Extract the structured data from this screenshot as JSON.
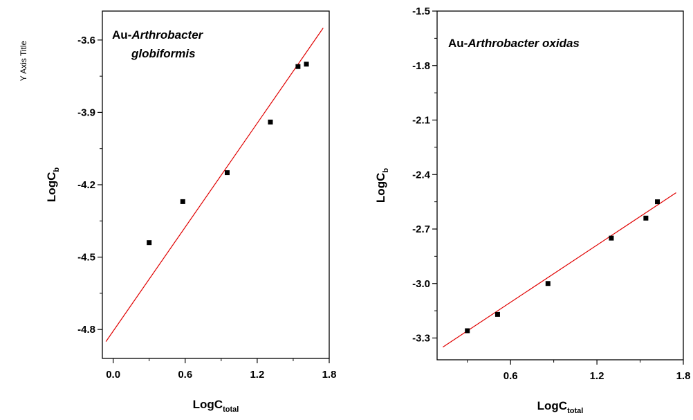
{
  "side_label": "Y Axis Title",
  "chart_data": [
    {
      "type": "scatter",
      "annotation_prefix": "Au-",
      "annotation_italic": "Arthrobacter",
      "annotation_line2": "globiformis",
      "xlabel_main": "LogC",
      "xlabel_sub": "total",
      "ylabel_main": "LogC",
      "ylabel_sub": "b",
      "xlim": [
        -0.09,
        1.8
      ],
      "ylim": [
        -4.92,
        -3.48
      ],
      "xticks": [
        0.0,
        0.6,
        1.2,
        1.8
      ],
      "xtick_labels": [
        "0.0",
        "0.6",
        "1.2",
        "1.8"
      ],
      "yticks": [
        -4.8,
        -4.5,
        -4.2,
        -3.9,
        -3.6
      ],
      "ytick_labels": [
        "-4.8",
        "-4.5",
        "-4.2",
        "-3.9",
        "-3.6"
      ],
      "points": [
        {
          "x": 0.3,
          "y": -4.44
        },
        {
          "x": 0.58,
          "y": -4.27
        },
        {
          "x": 0.95,
          "y": -4.15
        },
        {
          "x": 1.31,
          "y": -3.94
        },
        {
          "x": 1.54,
          "y": -3.71
        },
        {
          "x": 1.61,
          "y": -3.7
        }
      ],
      "fit": {
        "x": [
          -0.06,
          1.75
        ],
        "y": [
          -4.85,
          -3.55
        ],
        "color": "#e00000"
      },
      "marker_color": "#000000"
    },
    {
      "type": "scatter",
      "annotation_prefix": "Au-",
      "annotation_italic": "Arthrobacter",
      "annotation_suffix": " oxidas",
      "xlabel_main": "LogC",
      "xlabel_sub": "total",
      "ylabel_main": "LogC",
      "ylabel_sub": "b",
      "xlim": [
        0.09,
        1.8
      ],
      "ylim": [
        -3.42,
        -1.5
      ],
      "xticks": [
        0.6,
        1.2,
        1.8
      ],
      "xtick_labels": [
        "0.6",
        "1.2",
        "1.8"
      ],
      "yticks": [
        -3.3,
        -3.0,
        -2.7,
        -2.4,
        -2.1,
        -1.8,
        -1.5
      ],
      "ytick_labels": [
        "-3.3",
        "-3.0",
        "-2.7",
        "-2.4",
        "-2.1",
        "-1.8",
        "-1.5"
      ],
      "points": [
        {
          "x": 0.3,
          "y": -3.26
        },
        {
          "x": 0.51,
          "y": -3.17
        },
        {
          "x": 0.86,
          "y": -3.0
        },
        {
          "x": 1.3,
          "y": -2.75
        },
        {
          "x": 1.54,
          "y": -2.64
        },
        {
          "x": 1.62,
          "y": -2.55
        }
      ],
      "fit": {
        "x": [
          0.13,
          1.75
        ],
        "y": [
          -3.35,
          -2.5
        ],
        "color": "#e00000"
      },
      "marker_color": "#000000"
    }
  ]
}
